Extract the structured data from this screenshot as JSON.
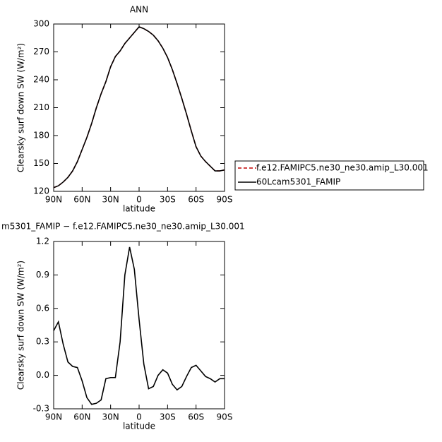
{
  "chart_data": [
    {
      "type": "line",
      "title": "ANN",
      "x_label": "latitude",
      "y_label": "Clearsky surf down SW (W/m²)",
      "x": [
        90,
        85,
        80,
        75,
        70,
        65,
        60,
        55,
        50,
        45,
        40,
        35,
        30,
        25,
        20,
        15,
        10,
        5,
        0,
        -5,
        -10,
        -15,
        -20,
        -25,
        -30,
        -35,
        -40,
        -45,
        -50,
        -55,
        -60,
        -65,
        -70,
        -75,
        -80,
        -85,
        -90
      ],
      "series": [
        {
          "name": "f.e12.FAMIPC5.ne30_ne30.amip_L30.001",
          "color": "#c00000",
          "linestyle": "dashed",
          "values": [
            124,
            126,
            130,
            135,
            142,
            152,
            165,
            178,
            193,
            210,
            225,
            238,
            254,
            265,
            271,
            279,
            285,
            291,
            297,
            295,
            292,
            288,
            282,
            274,
            264,
            251,
            236,
            220,
            203,
            185,
            168,
            158,
            152,
            147,
            142,
            142,
            143
          ]
        },
        {
          "name": "60Lcam5301_FAMIP",
          "color": "#000000",
          "linestyle": "solid",
          "values": [
            124,
            126,
            130,
            135,
            142,
            152,
            165,
            178,
            193,
            210,
            225,
            238,
            254,
            265,
            271,
            279,
            285,
            291,
            297,
            295,
            292,
            288,
            282,
            274,
            264,
            251,
            236,
            220,
            203,
            185,
            168,
            158,
            152,
            147,
            142,
            142,
            143
          ]
        }
      ],
      "xlim": [
        90,
        -90
      ],
      "xticks": [
        {
          "value": 90,
          "label": "90N"
        },
        {
          "value": 60,
          "label": "60N"
        },
        {
          "value": 30,
          "label": "30N"
        },
        0,
        {
          "value": -30,
          "label": "30S"
        },
        {
          "value": -60,
          "label": "60S"
        },
        {
          "value": -90,
          "label": "90S"
        }
      ],
      "ylim": [
        120,
        300
      ],
      "yticks": [
        120,
        150,
        180,
        210,
        240,
        270,
        300
      ],
      "legend": "right"
    },
    {
      "type": "line",
      "title": "m5301_FAMIP − f.e12.FAMIPC5.ne30_ne30.amip_L30.001",
      "x_label": "latitude",
      "y_label": "Clearsky surf down SW (W/m²)",
      "x": [
        90,
        85,
        80,
        75,
        70,
        65,
        60,
        55,
        50,
        45,
        40,
        35,
        30,
        25,
        20,
        15,
        10,
        5,
        0,
        -5,
        -10,
        -15,
        -20,
        -25,
        -30,
        -35,
        -40,
        -45,
        -50,
        -55,
        -60,
        -65,
        -70,
        -75,
        -80,
        -85,
        -90
      ],
      "series": [
        {
          "color": "#000000",
          "linestyle": "solid",
          "values": [
            0.4,
            0.48,
            0.28,
            0.12,
            0.08,
            0.07,
            -0.05,
            -0.2,
            -0.26,
            -0.25,
            -0.22,
            -0.03,
            -0.02,
            -0.02,
            0.3,
            0.9,
            1.15,
            0.95,
            0.5,
            0.1,
            -0.12,
            -0.1,
            0.0,
            0.05,
            0.02,
            -0.08,
            -0.13,
            -0.1,
            -0.01,
            0.07,
            0.09,
            0.04,
            -0.01,
            -0.03,
            -0.06,
            -0.03,
            -0.03
          ]
        }
      ],
      "xlim": [
        90,
        -90
      ],
      "xticks": [
        {
          "value": 90,
          "label": "90N"
        },
        {
          "value": 60,
          "label": "60N"
        },
        {
          "value": 30,
          "label": "30N"
        },
        0,
        {
          "value": -30,
          "label": "30S"
        },
        {
          "value": -60,
          "label": "60S"
        },
        {
          "value": -90,
          "label": "90S"
        }
      ],
      "ylim": [
        -0.3,
        1.2
      ],
      "yticks": [
        -0.3,
        {
          "value": 0,
          "label": "0.0"
        },
        0.3,
        0.6,
        0.9,
        1.2
      ]
    }
  ]
}
